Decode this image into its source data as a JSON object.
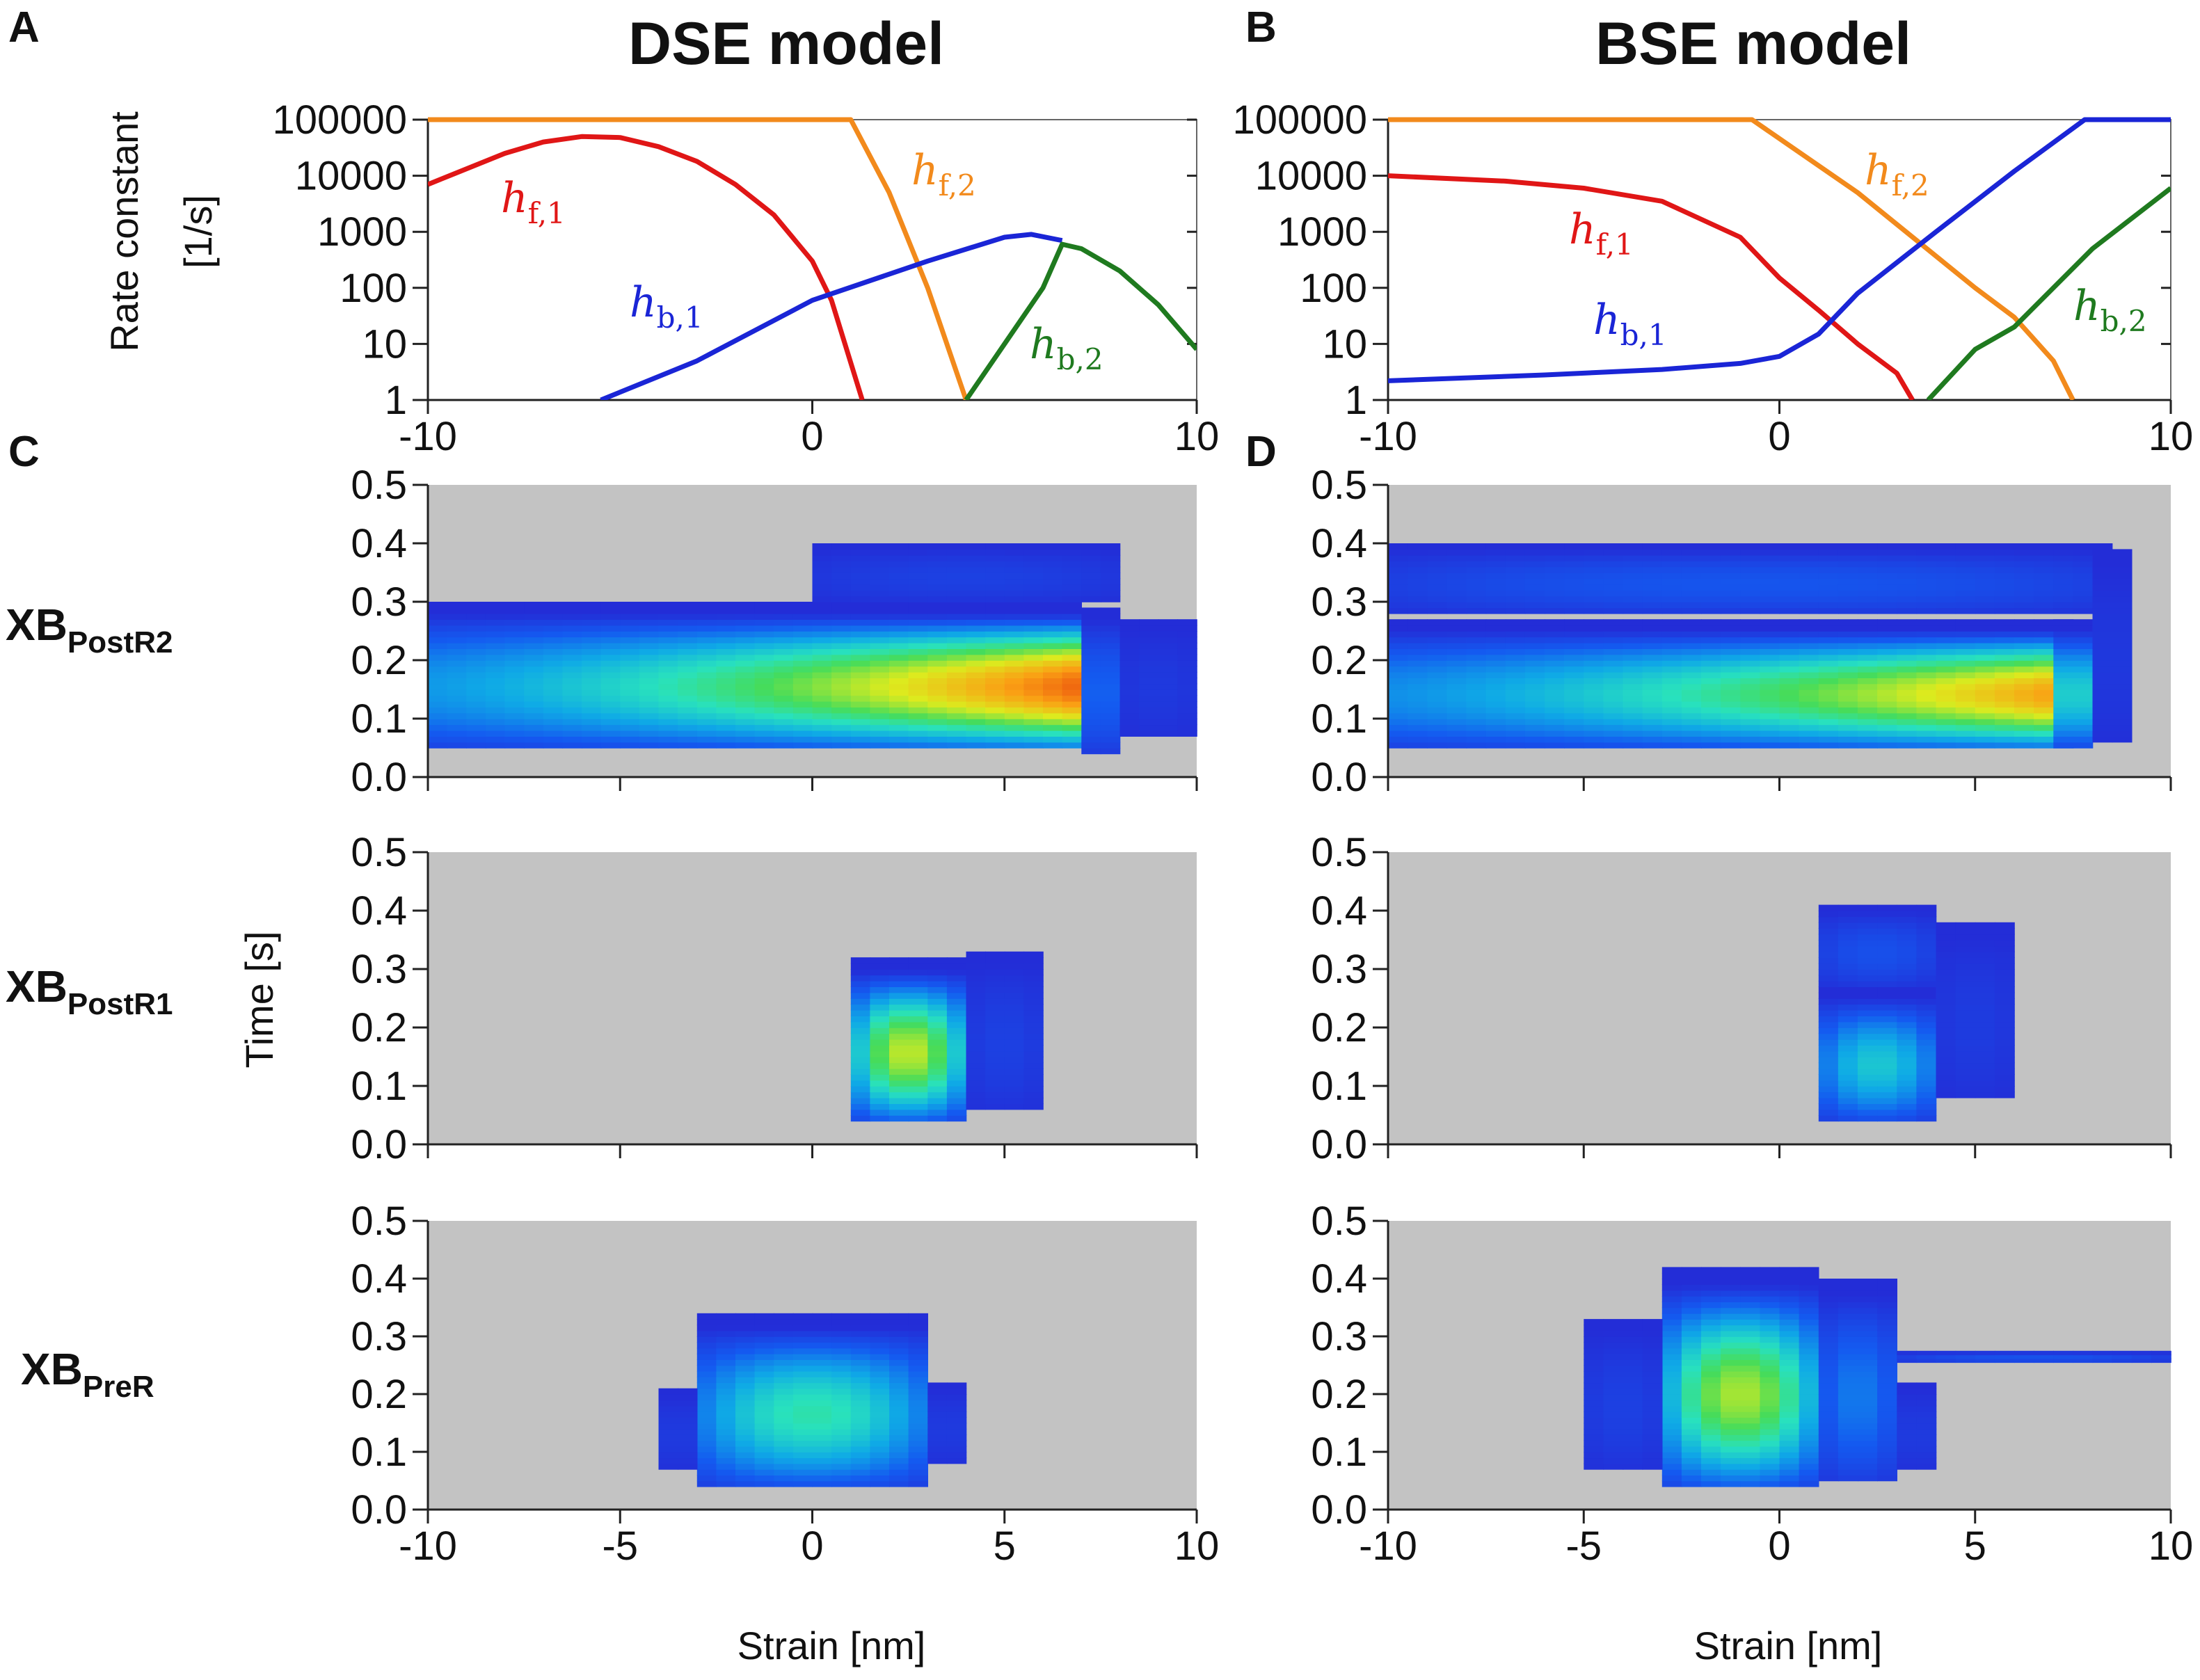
{
  "panels": {
    "A": {
      "letter": "A",
      "title": "DSE model"
    },
    "B": {
      "letter": "B",
      "title": "BSE model"
    },
    "C": {
      "letter": "C"
    },
    "D": {
      "letter": "D"
    }
  },
  "row_labels": [
    {
      "main": "XB",
      "sub": "PostR2"
    },
    {
      "main": "XB",
      "sub": "PostR1"
    },
    {
      "main": "XB",
      "sub": "PreR"
    }
  ],
  "axes": {
    "rate_ylabel_line1": "Rate constant",
    "rate_ylabel_line2": "[1/s]",
    "time_ylabel": "Time [s]",
    "strain_xlabel": "Strain [nm]"
  },
  "colors": {
    "hf1": "#e01616",
    "hf2": "#f28a1c",
    "hb1": "#1a25d6",
    "hb2": "#1f7a1f",
    "background_gray": "#c3c3c3"
  },
  "chart_data": [
    {
      "id": "A",
      "type": "line",
      "title": "DSE model",
      "xlabel": "",
      "ylabel": "Rate constant [1/s]",
      "xlim": [
        -10,
        10
      ],
      "ylim": [
        1,
        100000
      ],
      "yscale": "log",
      "x_ticks": [
        "-10",
        "0",
        "10"
      ],
      "y_ticks": [
        "1",
        "10",
        "100",
        "1000",
        "10000",
        "100000"
      ],
      "series": [
        {
          "key": "hf1",
          "label": "h",
          "sub": "f,1",
          "x": [
            -10,
            -8,
            -7,
            -6,
            -5,
            -4,
            -3,
            -2,
            -1,
            0,
            0.5,
            1.3
          ],
          "y": [
            7000,
            25000,
            40000,
            50000,
            48000,
            33000,
            18000,
            7000,
            2000,
            300,
            60,
            1
          ]
        },
        {
          "key": "hf2",
          "label": "h",
          "sub": "f,2",
          "x": [
            -10,
            1.0,
            2.0,
            3.0,
            4.0
          ],
          "y": [
            100000,
            100000,
            5000,
            100,
            1
          ]
        },
        {
          "key": "hb1",
          "label": "h",
          "sub": "b,1",
          "x": [
            -5.5,
            -3,
            0,
            3,
            5,
            5.7,
            6.5
          ],
          "y": [
            1,
            5,
            60,
            300,
            800,
            900,
            700
          ]
        },
        {
          "key": "hb2",
          "label": "h",
          "sub": "b,2",
          "x": [
            4.0,
            5.0,
            6.0,
            6.5,
            7.0,
            8.0,
            9.0,
            10.0
          ],
          "y": [
            1,
            10,
            100,
            600,
            500,
            200,
            50,
            8
          ]
        }
      ]
    },
    {
      "id": "B",
      "type": "line",
      "title": "BSE model",
      "xlabel": "",
      "ylabel": "Rate constant [1/s]",
      "xlim": [
        -10,
        10
      ],
      "ylim": [
        1,
        100000
      ],
      "yscale": "log",
      "x_ticks": [
        "-10",
        "0",
        "10"
      ],
      "y_ticks": [
        "1",
        "10",
        "100",
        "1000",
        "10000",
        "100000"
      ],
      "series": [
        {
          "key": "hf1",
          "label": "h",
          "sub": "f,1",
          "x": [
            -10,
            -7,
            -5,
            -3,
            -1,
            0,
            1,
            2,
            3,
            3.4
          ],
          "y": [
            10000,
            8000,
            6000,
            3500,
            800,
            150,
            40,
            10,
            3,
            1
          ]
        },
        {
          "key": "hf2",
          "label": "h",
          "sub": "f,2",
          "x": [
            -10,
            -0.7,
            2,
            5,
            6,
            7,
            7.5
          ],
          "y": [
            100000,
            100000,
            5000,
            100,
            30,
            5,
            1
          ]
        },
        {
          "key": "hb1",
          "label": "h",
          "sub": "b,1",
          "x": [
            -10,
            -6,
            -3,
            -1,
            0,
            1,
            2,
            4,
            6,
            7.8,
            10
          ],
          "y": [
            2.2,
            2.8,
            3.5,
            4.5,
            6,
            15,
            80,
            1000,
            12000,
            100000,
            100000
          ]
        },
        {
          "key": "hb2",
          "label": "h",
          "sub": "b,2",
          "x": [
            3.8,
            5.0,
            6.0,
            8.0,
            10.0
          ],
          "y": [
            1,
            8,
            20,
            500,
            6000
          ]
        }
      ]
    },
    {
      "id": "C-PostR2",
      "type": "heatmap",
      "xlabel": "",
      "ylabel": "",
      "xlim": [
        -10,
        10
      ],
      "ylim": [
        0,
        0.5
      ],
      "x_ticks": [],
      "y_ticks": [
        "0.0",
        "0.1",
        "0.2",
        "0.3",
        "0.4",
        "0.5"
      ],
      "blobs": [
        {
          "x0": -10,
          "x1": 7.0,
          "t0": 0.05,
          "t1": 0.3,
          "peak": 0.9,
          "grow": 1.0
        },
        {
          "x0": 7.0,
          "x1": 8.0,
          "t0": 0.04,
          "t1": 0.29,
          "peak": 0.22
        },
        {
          "x0": 8.0,
          "x1": 10,
          "t0": 0.07,
          "t1": 0.27,
          "peak": 0.05
        },
        {
          "x0": 0,
          "x1": 8.0,
          "t0": 0.3,
          "t1": 0.4,
          "peak": 0.08
        }
      ]
    },
    {
      "id": "C-PostR1",
      "type": "heatmap",
      "xlabel": "",
      "ylabel": "Time [s]",
      "xlim": [
        -10,
        10
      ],
      "ylim": [
        0,
        0.5
      ],
      "x_ticks": [],
      "y_ticks": [
        "0.0",
        "0.1",
        "0.2",
        "0.3",
        "0.4",
        "0.5"
      ],
      "blobs": [
        {
          "x0": 1.0,
          "x1": 4.0,
          "t0": 0.04,
          "t1": 0.32,
          "peak": 0.68
        },
        {
          "x0": 4.0,
          "x1": 6.0,
          "t0": 0.06,
          "t1": 0.33,
          "peak": 0.08
        }
      ]
    },
    {
      "id": "C-PreR",
      "type": "heatmap",
      "xlabel": "Strain [nm]",
      "ylabel": "",
      "xlim": [
        -10,
        10
      ],
      "ylim": [
        0,
        0.5
      ],
      "x_ticks": [
        "-10",
        "-5",
        "0",
        "5",
        "10"
      ],
      "y_ticks": [
        "0.0",
        "0.1",
        "0.2",
        "0.3",
        "0.4",
        "0.5"
      ],
      "blobs": [
        {
          "x0": -3.0,
          "x1": 3.0,
          "t0": 0.04,
          "t1": 0.34,
          "peak": 0.5
        },
        {
          "x0": -4.0,
          "x1": -3.0,
          "t0": 0.07,
          "t1": 0.21,
          "peak": 0.06
        },
        {
          "x0": 3.0,
          "x1": 4.0,
          "t0": 0.08,
          "t1": 0.22,
          "peak": 0.06
        }
      ]
    },
    {
      "id": "D-PostR2",
      "type": "heatmap",
      "xlabel": "",
      "ylabel": "",
      "xlim": [
        -10,
        10
      ],
      "ylim": [
        0,
        0.5
      ],
      "x_ticks": [],
      "y_ticks": [
        "0.0",
        "0.1",
        "0.2",
        "0.3",
        "0.4",
        "0.5"
      ],
      "blobs": [
        {
          "x0": -10,
          "x1": 7.5,
          "t0": 0.05,
          "t1": 0.27,
          "peak": 0.84,
          "grow": 1.0
        },
        {
          "x0": 7.0,
          "x1": 8.0,
          "t0": 0.05,
          "t1": 0.27,
          "peak": 0.5
        },
        {
          "x0": -10,
          "x1": 8.5,
          "t0": 0.28,
          "t1": 0.4,
          "peak": 0.16
        },
        {
          "x0": 8.0,
          "x1": 9.0,
          "t0": 0.06,
          "t1": 0.39,
          "peak": 0.05
        }
      ]
    },
    {
      "id": "D-PostR1",
      "type": "heatmap",
      "xlabel": "",
      "ylabel": "",
      "xlim": [
        -10,
        10
      ],
      "ylim": [
        0,
        0.5
      ],
      "x_ticks": [],
      "y_ticks": [
        "0.0",
        "0.1",
        "0.2",
        "0.3",
        "0.4",
        "0.5"
      ],
      "blobs": [
        {
          "x0": 1.0,
          "x1": 4.0,
          "t0": 0.04,
          "t1": 0.27,
          "peak": 0.42
        },
        {
          "x0": 1.0,
          "x1": 4.0,
          "t0": 0.27,
          "t1": 0.41,
          "peak": 0.14
        },
        {
          "x0": 4.0,
          "x1": 6.0,
          "t0": 0.08,
          "t1": 0.38,
          "peak": 0.06
        }
      ]
    },
    {
      "id": "D-PreR",
      "type": "heatmap",
      "xlabel": "Strain [nm]",
      "ylabel": "",
      "xlim": [
        -10,
        10
      ],
      "ylim": [
        0,
        0.5
      ],
      "x_ticks": [
        "-10",
        "-5",
        "0",
        "5",
        "10"
      ],
      "y_ticks": [
        "0.0",
        "0.1",
        "0.2",
        "0.3",
        "0.4",
        "0.5"
      ],
      "blobs": [
        {
          "x0": -3.0,
          "x1": 1.0,
          "t0": 0.04,
          "t1": 0.42,
          "peak": 0.66
        },
        {
          "x0": 1.0,
          "x1": 3.0,
          "t0": 0.05,
          "t1": 0.4,
          "peak": 0.25
        },
        {
          "x0": -5.0,
          "x1": -3.0,
          "t0": 0.07,
          "t1": 0.33,
          "peak": 0.08
        },
        {
          "x0": 3.0,
          "x1": 10.0,
          "t0": 0.255,
          "t1": 0.275,
          "peak": 0.15
        },
        {
          "x0": 3.0,
          "x1": 4.0,
          "t0": 0.07,
          "t1": 0.22,
          "peak": 0.06
        }
      ]
    }
  ]
}
